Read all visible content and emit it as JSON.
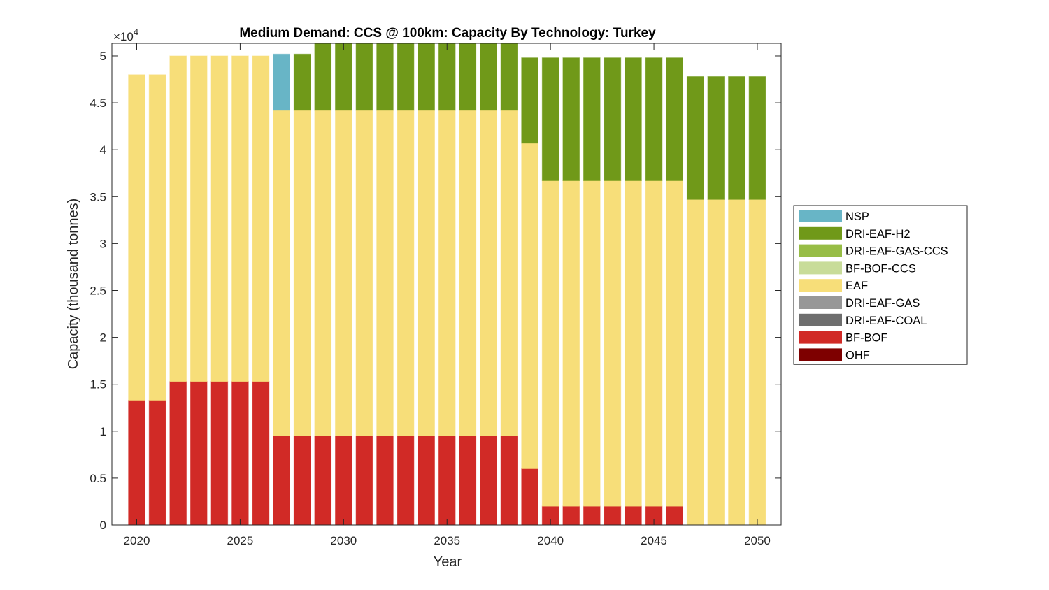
{
  "chart_data": {
    "type": "bar",
    "stacked": true,
    "title": "Medium Demand: CCS @ 100km: Capacity By Technology: Turkey",
    "xlabel": "Year",
    "ylabel": "Capacity (thousand tonnes)",
    "y_exponent_label": "×10",
    "y_exponent_power": "4",
    "xlim": [
      2018.8,
      2051.15
    ],
    "ylim": [
      0,
      51340
    ],
    "x_ticks": [
      2020,
      2025,
      2030,
      2035,
      2040,
      2045,
      2050
    ],
    "x_tick_labels": [
      "2020",
      "2025",
      "2030",
      "2035",
      "2040",
      "2045",
      "2050"
    ],
    "y_ticks": [
      0,
      5000,
      10000,
      15000,
      20000,
      25000,
      30000,
      35000,
      40000,
      45000,
      50000
    ],
    "y_tick_labels": [
      "0",
      "0.5",
      "1",
      "1.5",
      "2",
      "2.5",
      "3",
      "3.5",
      "4",
      "4.5",
      "5"
    ],
    "grid": false,
    "legend_position": "outside-right",
    "categories": [
      2020,
      2021,
      2022,
      2023,
      2024,
      2025,
      2026,
      2027,
      2028,
      2029,
      2030,
      2031,
      2032,
      2033,
      2034,
      2035,
      2036,
      2037,
      2038,
      2039,
      2040,
      2041,
      2042,
      2043,
      2044,
      2045,
      2046,
      2047,
      2048,
      2049,
      2050
    ],
    "series": [
      {
        "name": "OHF",
        "color": "#7e0000",
        "values": [
          0,
          0,
          0,
          0,
          0,
          0,
          0,
          0,
          0,
          0,
          0,
          0,
          0,
          0,
          0,
          0,
          0,
          0,
          0,
          0,
          0,
          0,
          0,
          0,
          0,
          0,
          0,
          0,
          0,
          0,
          0
        ]
      },
      {
        "name": "BF-BOF",
        "color": "#d12a26",
        "values": [
          13300,
          13300,
          15300,
          15300,
          15300,
          15300,
          15300,
          9500,
          9500,
          9500,
          9500,
          9500,
          9500,
          9500,
          9500,
          9500,
          9500,
          9500,
          9500,
          6000,
          2000,
          2000,
          2000,
          2000,
          2000,
          2000,
          2000,
          0,
          0,
          0,
          0
        ]
      },
      {
        "name": "DRI-EAF-COAL",
        "color": "#6e6e6e",
        "values": [
          0,
          0,
          0,
          0,
          0,
          0,
          0,
          0,
          0,
          0,
          0,
          0,
          0,
          0,
          0,
          0,
          0,
          0,
          0,
          0,
          0,
          0,
          0,
          0,
          0,
          0,
          0,
          0,
          0,
          0,
          0
        ]
      },
      {
        "name": "DRI-EAF-GAS",
        "color": "#979797",
        "values": [
          0,
          0,
          0,
          0,
          0,
          0,
          0,
          0,
          0,
          0,
          0,
          0,
          0,
          0,
          0,
          0,
          0,
          0,
          0,
          0,
          0,
          0,
          0,
          0,
          0,
          0,
          0,
          0,
          0,
          0,
          0
        ]
      },
      {
        "name": "EAF",
        "color": "#f7de79",
        "values": [
          34700,
          34700,
          34700,
          34700,
          34700,
          34700,
          34700,
          34700,
          34700,
          34700,
          34700,
          34700,
          34700,
          34700,
          34700,
          34700,
          34700,
          34700,
          34700,
          34700,
          34700,
          34700,
          34700,
          34700,
          34700,
          34700,
          34700,
          34700,
          34700,
          34700,
          34700
        ]
      },
      {
        "name": "BF-BOF-CCS",
        "color": "#c8dc99",
        "values": [
          0,
          0,
          0,
          0,
          0,
          0,
          0,
          0,
          0,
          0,
          0,
          0,
          0,
          0,
          0,
          0,
          0,
          0,
          0,
          0,
          0,
          0,
          0,
          0,
          0,
          0,
          0,
          0,
          0,
          0,
          0
        ]
      },
      {
        "name": "DRI-EAF-GAS-CCS",
        "color": "#97bd46",
        "values": [
          0,
          0,
          0,
          0,
          0,
          0,
          0,
          0,
          0,
          0,
          0,
          0,
          0,
          0,
          0,
          0,
          0,
          0,
          0,
          0,
          0,
          0,
          0,
          0,
          0,
          0,
          0,
          0,
          0,
          0,
          0
        ]
      },
      {
        "name": "DRI-EAF-H2",
        "color": "#709919",
        "values": [
          0,
          0,
          0,
          0,
          0,
          0,
          0,
          0,
          6000,
          9000,
          9000,
          9000,
          9000,
          9000,
          9000,
          9000,
          9000,
          9000,
          9000,
          9100,
          13100,
          13100,
          13100,
          13100,
          13100,
          13100,
          13100,
          13100,
          13100,
          13100,
          13100
        ]
      },
      {
        "name": "NSP",
        "color": "#68b5c6",
        "values": [
          0,
          0,
          0,
          0,
          0,
          0,
          0,
          6000,
          0,
          0,
          0,
          0,
          0,
          0,
          0,
          0,
          0,
          0,
          0,
          0,
          0,
          0,
          0,
          0,
          0,
          0,
          0,
          0,
          0,
          0,
          0
        ]
      }
    ],
    "legend_order": [
      "NSP",
      "DRI-EAF-H2",
      "DRI-EAF-GAS-CCS",
      "BF-BOF-CCS",
      "EAF",
      "DRI-EAF-GAS",
      "DRI-EAF-COAL",
      "BF-BOF",
      "OHF"
    ]
  }
}
